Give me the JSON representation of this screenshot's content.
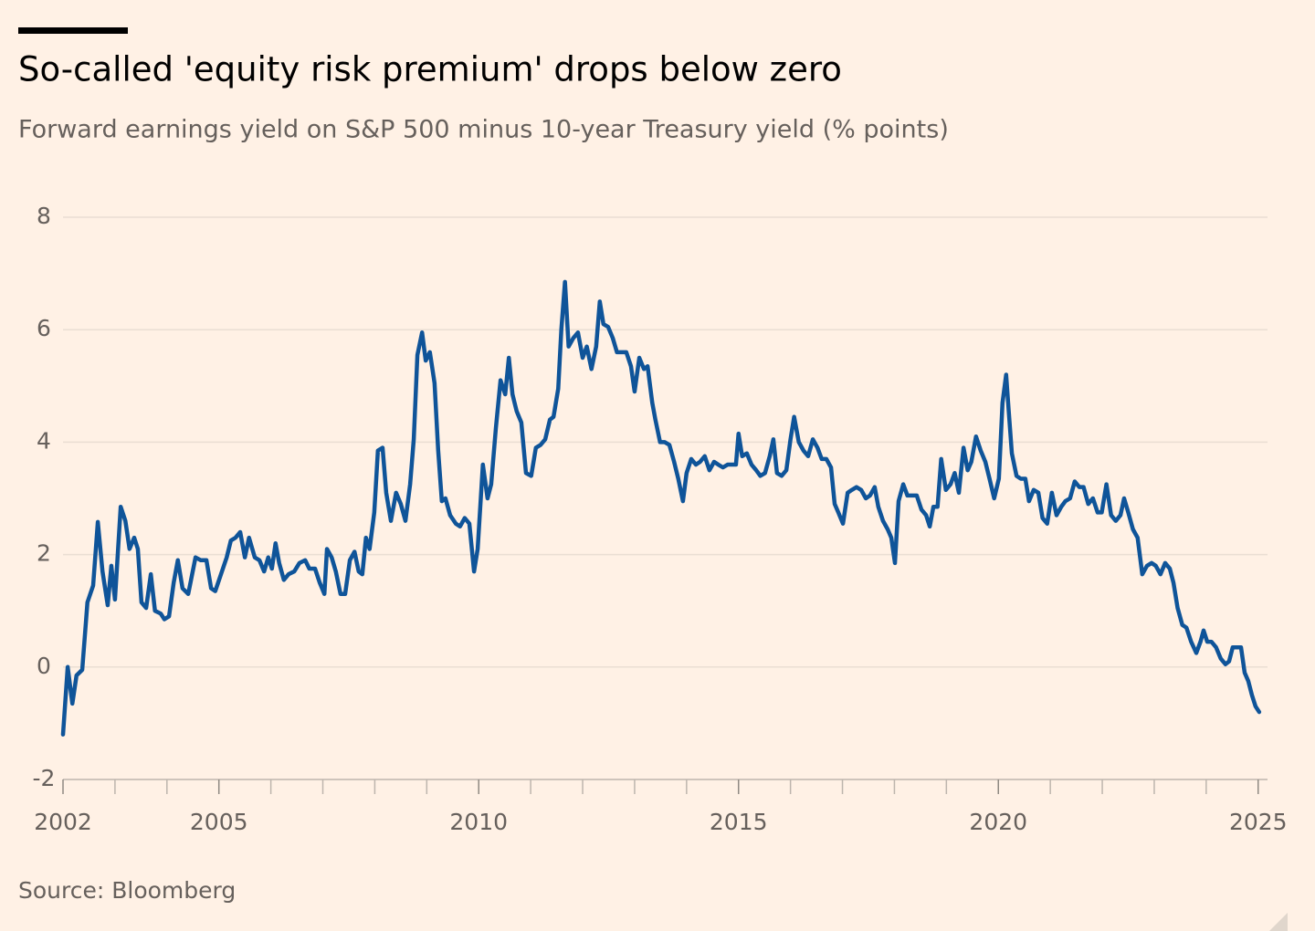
{
  "chart_data": {
    "type": "line",
    "title": "So-called 'equity risk premium' drops below zero",
    "subtitle": "Forward earnings yield on S&P 500 minus 10-year Treasury yield (% points)",
    "source": "Source: Bloomberg",
    "color": "#0f5499",
    "grid": true,
    "xlim": [
      2002,
      2025.18
    ],
    "ylim": [
      -2,
      8
    ],
    "yticks": [
      -2,
      0,
      2,
      4,
      6,
      8
    ],
    "xticks": [
      2002,
      2005,
      2010,
      2015,
      2020,
      2025
    ],
    "xminorticks": [
      2003,
      2004,
      2006,
      2007,
      2008,
      2009,
      2011,
      2012,
      2013,
      2014,
      2016,
      2017,
      2018,
      2019,
      2021,
      2022,
      2023,
      2024
    ],
    "x": [
      2002.0,
      2002.09,
      2002.18,
      2002.26,
      2002.37,
      2002.47,
      2002.58,
      2002.67,
      2002.76,
      2002.86,
      2002.93,
      2003.0,
      2003.11,
      2003.2,
      2003.28,
      2003.37,
      2003.44,
      2003.51,
      2003.6,
      2003.69,
      2003.77,
      2003.88,
      2003.95,
      2004.04,
      2004.13,
      2004.21,
      2004.3,
      2004.41,
      2004.55,
      2004.65,
      2004.76,
      2004.85,
      2004.93,
      2005.04,
      2005.15,
      2005.23,
      2005.32,
      2005.41,
      2005.5,
      2005.58,
      2005.69,
      2005.78,
      2005.87,
      2005.95,
      2006.02,
      2006.09,
      2006.16,
      2006.25,
      2006.34,
      2006.45,
      2006.55,
      2006.66,
      2006.74,
      2006.85,
      2006.94,
      2007.03,
      2007.08,
      2007.17,
      2007.25,
      2007.34,
      2007.43,
      2007.52,
      2007.61,
      2007.69,
      2007.76,
      2007.83,
      2007.9,
      2007.99,
      2008.06,
      2008.15,
      2008.22,
      2008.31,
      2008.41,
      2008.5,
      2008.59,
      2008.68,
      2008.75,
      2008.82,
      2008.91,
      2008.98,
      2009.06,
      2009.15,
      2009.22,
      2009.29,
      2009.36,
      2009.45,
      2009.56,
      2009.64,
      2009.73,
      2009.82,
      2009.91,
      2009.98,
      2010.08,
      2010.17,
      2010.24,
      2010.33,
      2010.42,
      2010.51,
      2010.58,
      2010.65,
      2010.73,
      2010.82,
      2010.91,
      2011.01,
      2011.1,
      2011.19,
      2011.28,
      2011.37,
      2011.44,
      2011.53,
      2011.59,
      2011.66,
      2011.73,
      2011.82,
      2011.91,
      2012.0,
      2012.08,
      2012.17,
      2012.26,
      2012.33,
      2012.4,
      2012.49,
      2012.58,
      2012.66,
      2012.75,
      2012.84,
      2012.93,
      2013.0,
      2013.09,
      2013.18,
      2013.25,
      2013.34,
      2013.4,
      2013.49,
      2013.58,
      2013.67,
      2013.76,
      2013.84,
      2013.93,
      2014.0,
      2014.09,
      2014.18,
      2014.26,
      2014.35,
      2014.44,
      2014.53,
      2014.61,
      2014.7,
      2014.79,
      2014.88,
      2014.95,
      2015.0,
      2015.07,
      2015.16,
      2015.25,
      2015.34,
      2015.42,
      2015.51,
      2015.6,
      2015.67,
      2015.74,
      2015.83,
      2015.92,
      2016.0,
      2016.07,
      2016.16,
      2016.25,
      2016.34,
      2016.43,
      2016.52,
      2016.6,
      2016.69,
      2016.78,
      2016.85,
      2016.92,
      2017.01,
      2017.1,
      2017.18,
      2017.27,
      2017.36,
      2017.45,
      2017.53,
      2017.62,
      2017.69,
      2017.78,
      2017.87,
      2017.94,
      2018.01,
      2018.08,
      2018.17,
      2018.25,
      2018.34,
      2018.43,
      2018.52,
      2018.61,
      2018.68,
      2018.75,
      2018.83,
      2018.9,
      2018.99,
      2019.08,
      2019.16,
      2019.24,
      2019.33,
      2019.41,
      2019.48,
      2019.57,
      2019.66,
      2019.75,
      2019.83,
      2019.92,
      2020.01,
      2020.08,
      2020.15,
      2020.2,
      2020.26,
      2020.35,
      2020.43,
      2020.52,
      2020.59,
      2020.68,
      2020.77,
      2020.85,
      2020.94,
      2021.03,
      2021.12,
      2021.21,
      2021.29,
      2021.38,
      2021.47,
      2021.56,
      2021.64,
      2021.73,
      2021.82,
      2021.91,
      2021.99,
      2022.08,
      2022.17,
      2022.26,
      2022.35,
      2022.42,
      2022.5,
      2022.59,
      2022.68,
      2022.77,
      2022.86,
      2022.95,
      2023.03,
      2023.12,
      2023.21,
      2023.3,
      2023.37,
      2023.45,
      2023.54,
      2023.62,
      2023.71,
      2023.81,
      2023.89,
      2023.95,
      2024.02,
      2024.1,
      2024.19,
      2024.28,
      2024.37,
      2024.44,
      2024.51,
      2024.6,
      2024.67,
      2024.74,
      2024.81,
      2024.88,
      2024.95,
      2025.02
    ],
    "values": [
      -1.2,
      0,
      -0.65,
      -0.15,
      -0.05,
      1.15,
      1.45,
      2.58,
      1.7,
      1.1,
      1.8,
      1.2,
      2.85,
      2.6,
      2.1,
      2.3,
      2.1,
      1.15,
      1.05,
      1.65,
      1.0,
      0.95,
      0.85,
      0.9,
      1.5,
      1.9,
      1.4,
      1.3,
      1.95,
      1.9,
      1.9,
      1.4,
      1.35,
      1.65,
      1.95,
      2.25,
      2.3,
      2.4,
      1.95,
      2.3,
      1.95,
      1.9,
      1.7,
      1.95,
      1.75,
      2.2,
      1.85,
      1.55,
      1.65,
      1.7,
      1.85,
      1.9,
      1.75,
      1.75,
      1.5,
      1.3,
      2.1,
      1.95,
      1.7,
      1.3,
      1.3,
      1.9,
      2.05,
      1.7,
      1.65,
      2.3,
      2.1,
      2.75,
      3.85,
      3.9,
      3.1,
      2.6,
      3.1,
      2.9,
      2.6,
      3.25,
      4.05,
      5.55,
      5.95,
      5.45,
      5.6,
      5.05,
      3.85,
      2.95,
      3.0,
      2.7,
      2.55,
      2.5,
      2.65,
      2.55,
      1.7,
      2.1,
      3.6,
      3.0,
      3.25,
      4.25,
      5.1,
      4.85,
      5.5,
      4.85,
      4.55,
      4.35,
      3.45,
      3.4,
      3.9,
      3.95,
      4.05,
      4.4,
      4.45,
      4.95,
      6.0,
      6.85,
      5.7,
      5.85,
      5.95,
      5.5,
      5.7,
      5.3,
      5.7,
      6.5,
      6.1,
      6.05,
      5.85,
      5.6,
      5.6,
      5.6,
      5.35,
      4.9,
      5.5,
      5.3,
      5.35,
      4.7,
      4.4,
      4.0,
      4.0,
      3.95,
      3.65,
      3.35,
      2.95,
      3.45,
      3.7,
      3.6,
      3.65,
      3.75,
      3.5,
      3.65,
      3.6,
      3.55,
      3.6,
      3.6,
      3.6,
      4.15,
      3.75,
      3.8,
      3.6,
      3.5,
      3.4,
      3.45,
      3.75,
      4.05,
      3.45,
      3.4,
      3.5,
      4.05,
      4.45,
      4.0,
      3.85,
      3.75,
      4.05,
      3.9,
      3.7,
      3.7,
      3.55,
      2.9,
      2.75,
      2.55,
      3.1,
      3.15,
      3.2,
      3.15,
      3.0,
      3.05,
      3.2,
      2.85,
      2.6,
      2.45,
      2.3,
      1.85,
      2.95,
      3.25,
      3.05,
      3.05,
      3.05,
      2.8,
      2.7,
      2.5,
      2.85,
      2.85,
      3.7,
      3.15,
      3.25,
      3.45,
      3.1,
      3.9,
      3.5,
      3.65,
      4.1,
      3.85,
      3.65,
      3.35,
      3.0,
      3.35,
      4.7,
      5.2,
      4.55,
      3.8,
      3.4,
      3.35,
      3.35,
      2.95,
      3.15,
      3.1,
      2.65,
      2.55,
      3.1,
      2.7,
      2.85,
      2.95,
      3.0,
      3.3,
      3.2,
      3.2,
      2.9,
      3.0,
      2.75,
      2.75,
      3.25,
      2.7,
      2.6,
      2.7,
      3.0,
      2.75,
      2.45,
      2.3,
      1.65,
      1.8,
      1.85,
      1.8,
      1.65,
      1.85,
      1.75,
      1.5,
      1.05,
      0.75,
      0.7,
      0.45,
      0.25,
      0.45,
      0.65,
      0.45,
      0.45,
      0.35,
      0.15,
      0.05,
      0.1,
      0.35,
      0.35,
      0.35,
      -0.1,
      -0.25,
      -0.5,
      -0.7,
      -0.8
    ]
  }
}
